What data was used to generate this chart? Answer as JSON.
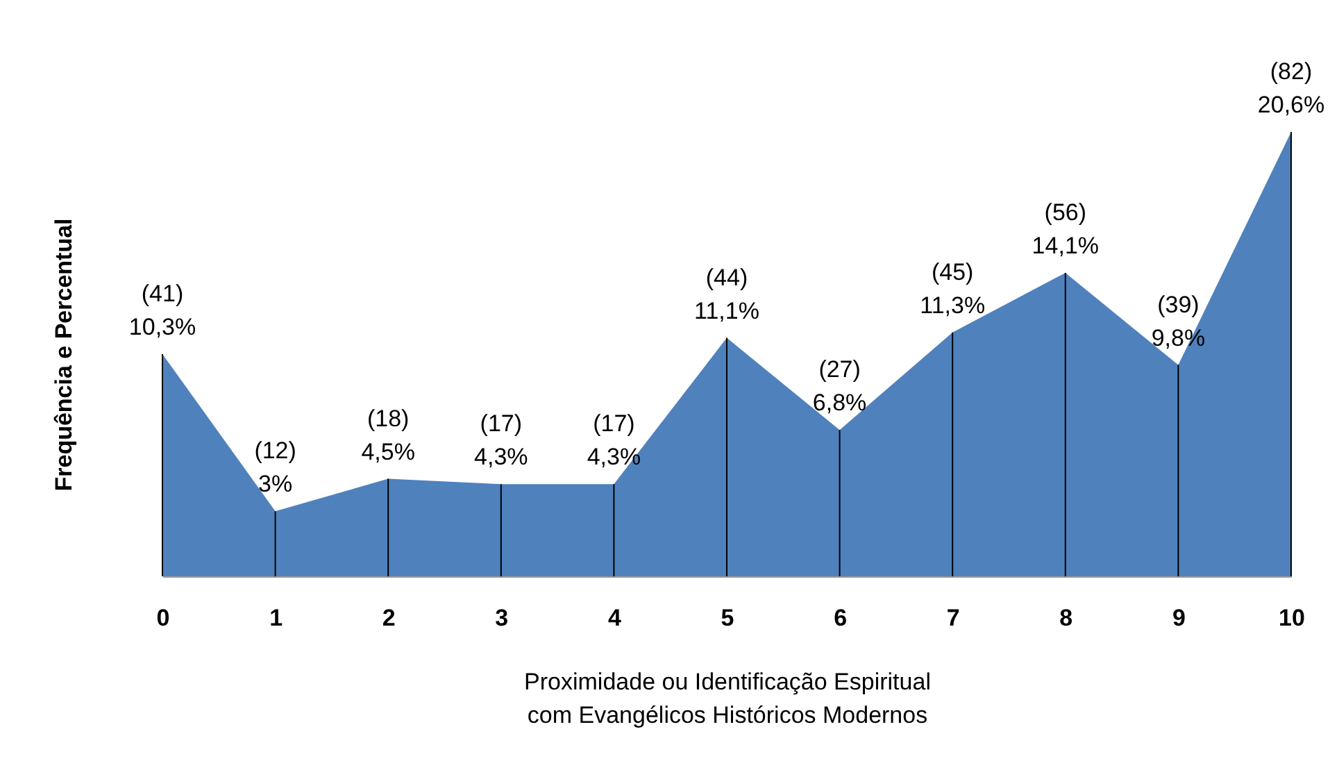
{
  "chart_data": {
    "type": "area",
    "xlabel": "Proximidade ou Identificação Espiritual\ncom Evangélicos Históricos Modernos",
    "ylabel": "Frequência e Percentual",
    "categories": [
      "0",
      "1",
      "2",
      "3",
      "4",
      "5",
      "6",
      "7",
      "8",
      "9",
      "10"
    ],
    "series": [
      {
        "color": "#4f81bd",
        "values": [
          41,
          12,
          18,
          17,
          17,
          44,
          27,
          45,
          56,
          39,
          82
        ],
        "value_labels": [
          "(41)\n10,3%",
          "(12)\n3%",
          "(18)\n4,5%",
          "(17)\n4,3%",
          "(17)\n4,3%",
          "(44)\n11,1%",
          "(27)\n6,8%",
          "(45)\n11,3%",
          "(56)\n14,1%",
          "(39)\n9,8%",
          "(82)\n20,6%"
        ]
      }
    ],
    "grid": false
  }
}
